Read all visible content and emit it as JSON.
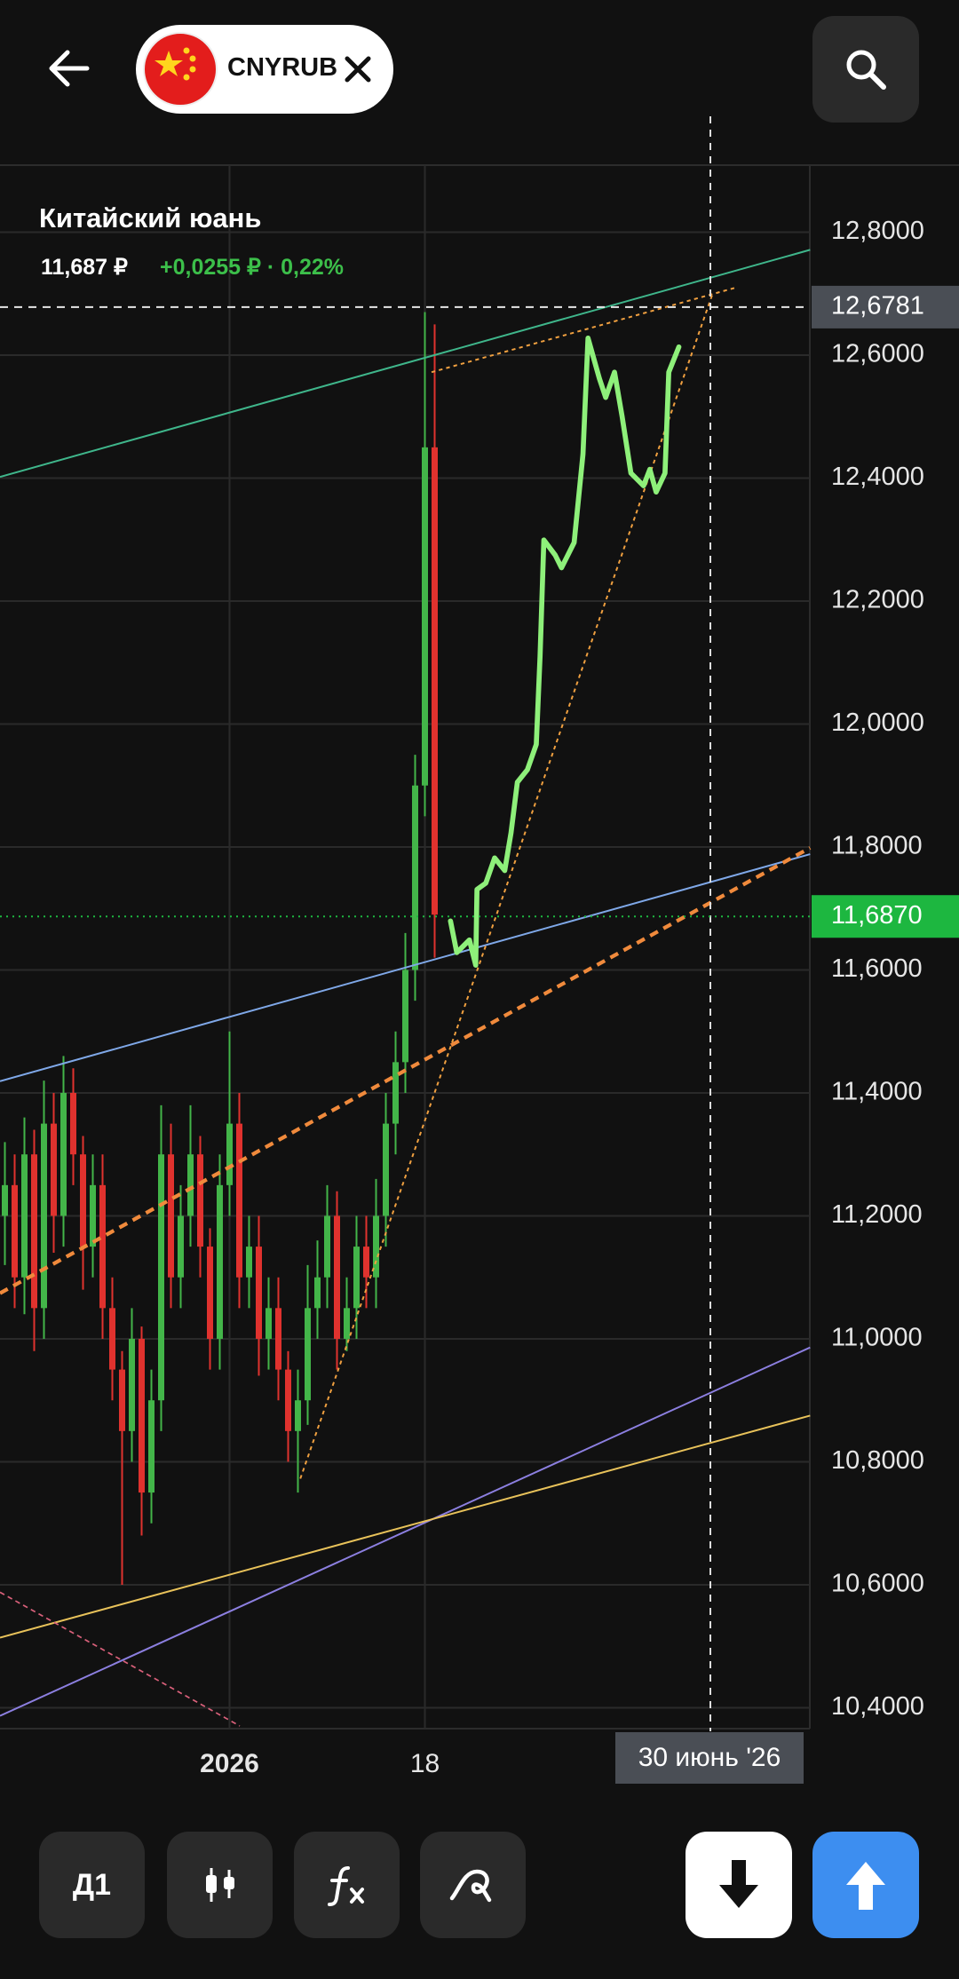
{
  "header": {
    "symbol": "CNYRUB"
  },
  "instrument": {
    "name": "Китайский юань",
    "price": "11,687 ₽",
    "change": "+0,0255 ₽ · 0,22%"
  },
  "crosshair": {
    "date": "30 июнь '26"
  },
  "toolbar": {
    "timeframe": "Д1"
  },
  "chart_data": {
    "type": "candlestick",
    "categories": [
      null,
      null,
      null,
      null,
      null,
      null,
      null,
      null,
      null,
      null,
      null,
      null,
      null,
      null,
      null,
      null,
      null,
      null,
      null,
      null,
      null,
      null,
      null,
      "2026",
      null,
      null,
      null,
      null,
      null,
      null,
      null,
      null,
      null,
      null,
      null,
      null,
      null,
      null,
      null,
      null,
      null,
      null,
      null,
      "18",
      null
    ],
    "open": [
      11.2,
      11.25,
      11.1,
      11.3,
      11.05,
      11.35,
      11.2,
      11.4,
      11.3,
      11.15,
      11.25,
      11.05,
      10.95,
      10.85,
      11.0,
      10.75,
      10.9,
      11.3,
      11.1,
      11.2,
      11.3,
      11.15,
      11.0,
      11.25,
      11.35,
      11.1,
      11.15,
      11.0,
      11.05,
      10.95,
      10.85,
      10.9,
      11.05,
      11.1,
      11.2,
      11.0,
      11.05,
      11.15,
      11.1,
      11.2,
      11.35,
      11.45,
      11.6,
      11.9,
      12.45
    ],
    "high": [
      11.32,
      11.3,
      11.36,
      11.34,
      11.42,
      11.4,
      11.46,
      11.44,
      11.33,
      11.3,
      11.3,
      11.1,
      10.98,
      11.05,
      11.02,
      10.95,
      11.38,
      11.35,
      11.25,
      11.38,
      11.33,
      11.18,
      11.3,
      11.5,
      11.4,
      11.2,
      11.2,
      11.1,
      11.1,
      10.98,
      10.95,
      11.12,
      11.16,
      11.25,
      11.24,
      11.1,
      11.2,
      11.2,
      11.26,
      11.4,
      11.5,
      11.66,
      11.95,
      12.67,
      12.65
    ],
    "low": [
      11.12,
      11.05,
      11.04,
      10.98,
      11.0,
      11.14,
      11.15,
      11.25,
      11.08,
      11.1,
      11.0,
      10.9,
      10.6,
      10.8,
      10.68,
      10.7,
      10.85,
      11.05,
      11.05,
      11.15,
      11.1,
      10.95,
      10.95,
      11.2,
      11.05,
      11.05,
      10.94,
      10.95,
      10.9,
      10.8,
      10.75,
      10.86,
      11.0,
      11.05,
      10.95,
      10.98,
      11.0,
      11.05,
      11.05,
      11.15,
      11.3,
      11.4,
      11.55,
      11.85,
      11.62
    ],
    "close": [
      11.25,
      11.1,
      11.3,
      11.05,
      11.35,
      11.2,
      11.4,
      11.3,
      11.15,
      11.25,
      11.05,
      10.95,
      10.85,
      11.0,
      10.75,
      10.9,
      11.3,
      11.1,
      11.2,
      11.3,
      11.15,
      11.0,
      11.25,
      11.35,
      11.1,
      11.15,
      11.0,
      11.05,
      10.95,
      10.85,
      10.9,
      11.05,
      11.1,
      11.2,
      11.0,
      11.05,
      11.15,
      11.1,
      11.2,
      11.35,
      11.45,
      11.6,
      11.9,
      12.45,
      11.69
    ],
    "up_color": "#43b549",
    "down_color": "#e0322e",
    "ylim": [
      10.366,
      12.909
    ],
    "yticks": [
      {
        "value": 12.8,
        "label": "12,8000"
      },
      {
        "value": 12.6,
        "label": "12,6000"
      },
      {
        "value": 12.4,
        "label": "12,4000"
      },
      {
        "value": 12.2,
        "label": "12,2000"
      },
      {
        "value": 12,
        "label": "12,0000"
      },
      {
        "value": 11.8,
        "label": "11,8000"
      },
      {
        "value": 11.6,
        "label": "11,6000"
      },
      {
        "value": 11.4,
        "label": "11,4000"
      },
      {
        "value": 11.2,
        "label": "11,2000"
      },
      {
        "value": 11,
        "label": "11,0000"
      },
      {
        "value": 10.8,
        "label": "10,8000"
      },
      {
        "value": 10.6,
        "label": "10,6000"
      },
      {
        "value": 10.4,
        "label": "10,4000"
      }
    ],
    "price_lines": [
      {
        "value": 12.6781,
        "label": "12,6781",
        "color": "#4a4e55"
      },
      {
        "value": 11.687,
        "label": "11,6870",
        "color": "#1db740"
      }
    ],
    "grid": true
  }
}
